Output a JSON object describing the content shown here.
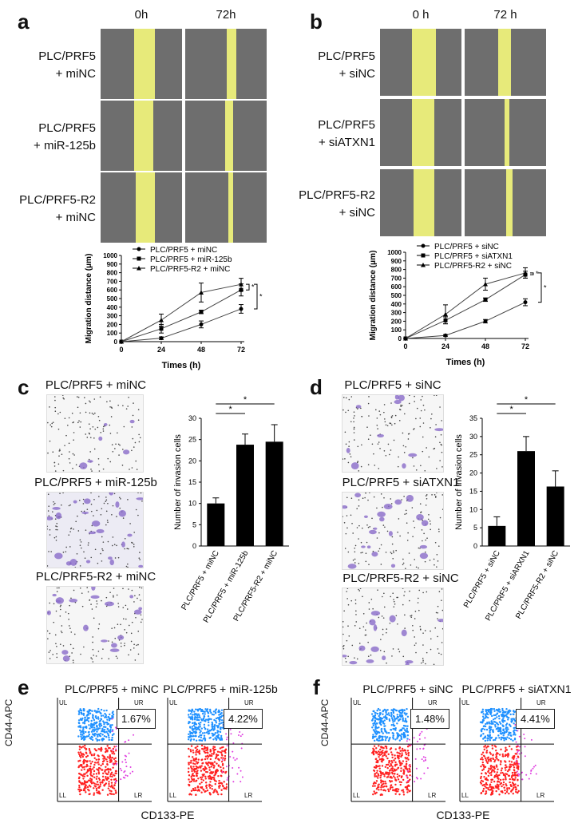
{
  "panels": {
    "a": {
      "letter": "a",
      "col_labels": [
        "0h",
        "72h"
      ],
      "row_labels": [
        [
          "PLC/PRF5",
          "+ miNC"
        ],
        [
          "PLC/PRF5",
          "+ miR-125b"
        ],
        [
          "PLC/PRF5-R2",
          "+ miNC"
        ]
      ]
    },
    "b": {
      "letter": "b",
      "col_labels": [
        "0 h",
        "72 h"
      ],
      "row_labels": [
        [
          "PLC/PRF5",
          "+ siNC"
        ],
        [
          "PLC/PRF5",
          "+ siATXN1"
        ],
        [
          "PLC/PRF5-R2",
          "+ siNC"
        ]
      ]
    },
    "c": {
      "letter": "c",
      "image_labels": [
        "PLC/PRF5 + miNC",
        "PLC/PRF5 + miR-125b",
        "PLC/PRF5-R2 + miNC"
      ]
    },
    "d": {
      "letter": "d",
      "image_labels": [
        "PLC/PRF5 + siNC",
        "PLC/PRF5 + siATXN1",
        "PLC/PRF5-R2 + siNC"
      ]
    },
    "e": {
      "letter": "e",
      "plots": [
        {
          "title": "PLC/PRF5 + miNC",
          "percent": "1.67%"
        },
        {
          "title": "PLC/PRF5 + miR-125b",
          "percent": "4.22%"
        }
      ],
      "ylabel": "CD44-APC",
      "xlabel": "CD133-PE",
      "quadrants": [
        "UL",
        "UR",
        "LL",
        "LR"
      ]
    },
    "f": {
      "letter": "f",
      "plots": [
        {
          "title": "PLC/PRF5 + siNC",
          "percent": "1.48%"
        },
        {
          "title": "PLC/PRF5 + siATXN1",
          "percent": "4.41%"
        }
      ],
      "ylabel": "CD44-APC",
      "xlabel": "CD133-PE",
      "quadrants": [
        "UL",
        "UR",
        "LL",
        "LR"
      ]
    }
  },
  "colors": {
    "wound": "#e7ea7a",
    "cd44_pos": "#1e90ff",
    "cd44_neg": "#ff2020",
    "double_pos": "#e040e0"
  },
  "chart_data": [
    {
      "type": "line",
      "xlabel": "Times (h)",
      "ylabel": "Migration distance (μm)",
      "x": [
        0,
        24,
        48,
        72
      ],
      "ylim": [
        0,
        1000
      ],
      "yticks": [
        0,
        100,
        200,
        300,
        400,
        500,
        600,
        700,
        800,
        900,
        1000
      ],
      "series": [
        {
          "name": "PLC/PRF5 + miNC",
          "marker": "circle",
          "values": [
            0,
            40,
            200,
            380
          ],
          "err": [
            0,
            15,
            40,
            50
          ]
        },
        {
          "name": "PLC/PRF5 + miR-125b",
          "marker": "square",
          "values": [
            0,
            150,
            345,
            600
          ],
          "err": [
            0,
            50,
            20,
            70
          ]
        },
        {
          "name": "PLC/PRF5-R2 + miNC",
          "marker": "triangle",
          "values": [
            0,
            250,
            570,
            665
          ],
          "err": [
            0,
            70,
            110,
            70
          ]
        }
      ],
      "significance": [
        "*",
        "*"
      ]
    },
    {
      "type": "line",
      "xlabel": "Times (h)",
      "ylabel": "Migration distance (μm)",
      "x": [
        0,
        24,
        48,
        72
      ],
      "ylim": [
        0,
        1000
      ],
      "yticks": [
        0,
        100,
        200,
        300,
        400,
        500,
        600,
        700,
        800,
        900,
        1000
      ],
      "series": [
        {
          "name": "PLC/PRF5 + siNC",
          "marker": "circle",
          "values": [
            0,
            35,
            200,
            420
          ],
          "err": [
            0,
            10,
            20,
            40
          ]
        },
        {
          "name": "PLC/PRF5 + siATXN1",
          "marker": "square",
          "values": [
            0,
            210,
            450,
            740
          ],
          "err": [
            0,
            40,
            20,
            40
          ]
        },
        {
          "name": "PLC/PRF5-R2 + siNC",
          "marker": "triangle",
          "values": [
            0,
            280,
            630,
            760
          ],
          "err": [
            0,
            110,
            70,
            60
          ]
        }
      ],
      "significance": [
        "*",
        "*"
      ]
    },
    {
      "type": "bar",
      "ylabel": "Number of invasion cells",
      "categories": [
        "PLC/PRF5 + miNC",
        "PLC/PRF5 + miR-125b",
        "PLC/PRF5-R2 + miNC"
      ],
      "values": [
        10,
        23.8,
        24.5
      ],
      "err": [
        1.3,
        2.5,
        4
      ],
      "ylim": [
        0,
        30
      ],
      "yticks": [
        0,
        5,
        10,
        15,
        20,
        25,
        30
      ],
      "significance": [
        "*",
        "*"
      ]
    },
    {
      "type": "bar",
      "ylabel": "Number of invasion cells",
      "categories": [
        "PLC/PRF5 + siNC",
        "PLC/PRF5 + siARXN1",
        "PLC/PRF5-R2 + siNC"
      ],
      "values": [
        5.5,
        26,
        16.3
      ],
      "err": [
        2.5,
        4,
        4.3
      ],
      "ylim": [
        0,
        35
      ],
      "yticks": [
        0,
        5,
        10,
        15,
        20,
        25,
        30,
        35
      ],
      "significance": [
        "*",
        "*"
      ]
    }
  ]
}
